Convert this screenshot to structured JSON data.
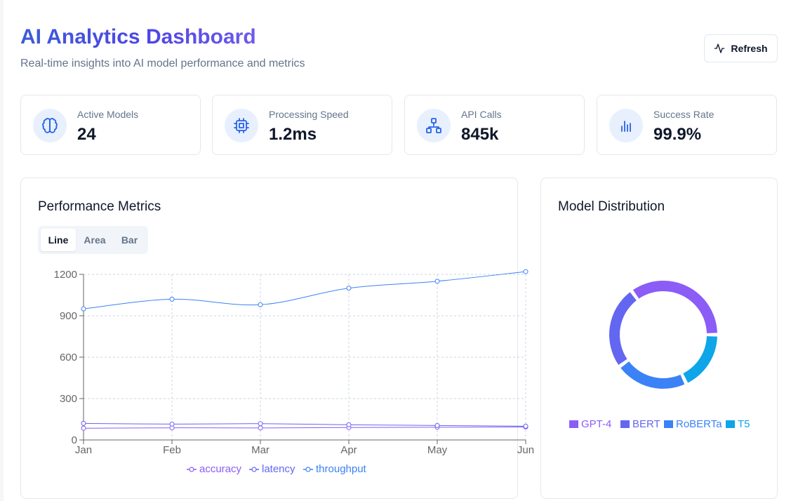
{
  "header": {
    "title": "AI Analytics Dashboard",
    "subtitle": "Real-time insights into AI model performance and metrics",
    "refresh_label": "Refresh"
  },
  "stats": [
    {
      "label": "Active Models",
      "value": "24",
      "icon": "brain-icon"
    },
    {
      "label": "Processing Speed",
      "value": "1.2ms",
      "icon": "cpu-icon"
    },
    {
      "label": "API Calls",
      "value": "845k",
      "icon": "network-icon"
    },
    {
      "label": "Success Rate",
      "value": "99.9%",
      "icon": "bar-chart-icon"
    }
  ],
  "performance": {
    "title": "Performance Metrics",
    "tabs": [
      "Line",
      "Area",
      "Bar"
    ],
    "active_tab": "Line"
  },
  "distribution": {
    "title": "Model Distribution"
  },
  "colors": {
    "accent": "#4f46e5",
    "accuracy": "#8b5cf6",
    "latency": "#6366f1",
    "throughput": "#3b82f6",
    "gpt4": "#8b5cf6",
    "bert": "#6366f1",
    "roberta": "#3b82f6",
    "t5": "#0ea5e9"
  },
  "chart_data": [
    {
      "type": "line",
      "categories": [
        "Jan",
        "Feb",
        "Mar",
        "Apr",
        "May",
        "Jun"
      ],
      "yticks": [
        0,
        300,
        600,
        900,
        1200
      ],
      "ylim": [
        0,
        1200
      ],
      "grid": true,
      "legend": "bottom",
      "series": [
        {
          "name": "accuracy",
          "values": [
            85,
            88,
            87,
            90,
            92,
            94
          ]
        },
        {
          "name": "latency",
          "values": [
            120,
            115,
            118,
            110,
            105,
            100
          ]
        },
        {
          "name": "throughput",
          "values": [
            950,
            1020,
            980,
            1100,
            1150,
            1220
          ]
        }
      ]
    },
    {
      "type": "pie",
      "legend": "bottom",
      "labels": [
        "GPT-4",
        "BERT",
        "RoBERTa",
        "T5"
      ],
      "values": [
        35,
        25,
        22,
        18
      ]
    }
  ]
}
